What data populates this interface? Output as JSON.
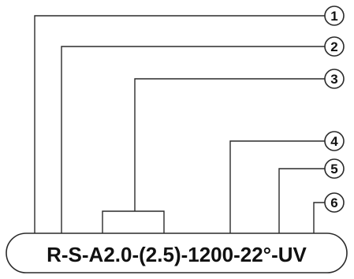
{
  "callouts": [
    {
      "label": "1"
    },
    {
      "label": "2"
    },
    {
      "label": "3"
    },
    {
      "label": "4"
    },
    {
      "label": "5"
    },
    {
      "label": "6"
    }
  ],
  "product_code": "R-S-A2.0-(2.5)-1200-22°-UV"
}
